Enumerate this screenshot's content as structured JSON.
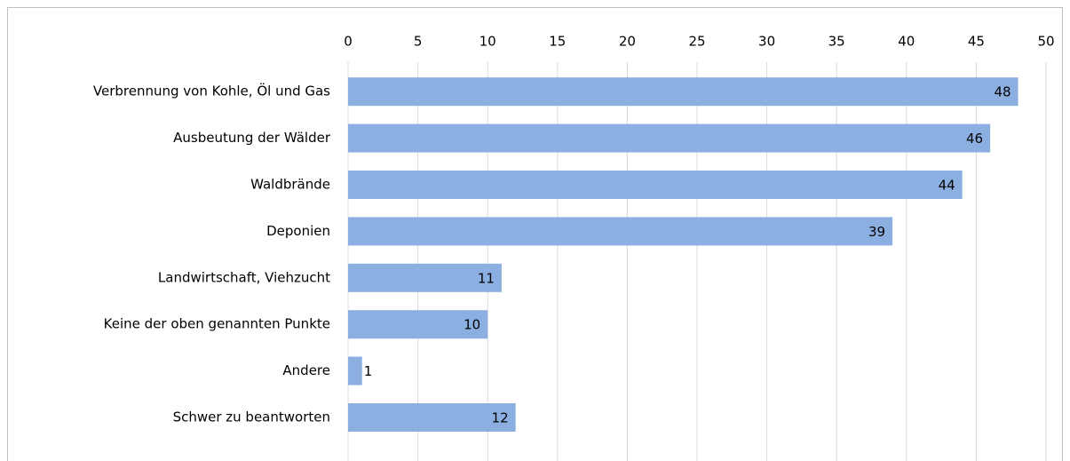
{
  "chart_data": {
    "type": "bar",
    "orientation": "horizontal",
    "categories": [
      "Verbrennung von Kohle, Öl und Gas",
      "Ausbeutung der Wälder",
      "Waldbrände",
      "Deponien",
      "Landwirtschaft, Viehzucht",
      "Keine der oben genannten Punkte",
      "Andere",
      "Schwer zu beantworten"
    ],
    "values": [
      48,
      46,
      44,
      39,
      11,
      10,
      1,
      12
    ],
    "color": "#8cafe1",
    "xlim": [
      0,
      50
    ],
    "xticks": [
      0,
      5,
      10,
      15,
      20,
      25,
      30,
      35,
      40,
      45,
      50
    ],
    "grid": true
  }
}
